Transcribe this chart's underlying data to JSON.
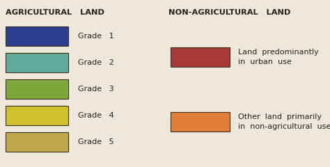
{
  "bg_color": "#ede8da",
  "left_title": "AGRICULTURAL   LAND",
  "right_title": "NON-AGRICULTURAL   LAND",
  "agri_grades": [
    "Grade   1",
    "Grade   2",
    "Grade   3",
    "Grade   4",
    "Grade   5"
  ],
  "agri_colors": [
    "#2e3d8e",
    "#62a99a",
    "#7fa83a",
    "#cfc030",
    "#c0a84a"
  ],
  "non_agri_labels": [
    "Land  predominantly\nin  urban  use",
    "Other  land  primarily\nin  non-agricultural  use"
  ],
  "non_agri_colors": [
    "#a83838",
    "#e08038"
  ],
  "title_fontsize": 8.2,
  "label_fontsize": 8.0,
  "non_label_fontsize": 8.0
}
